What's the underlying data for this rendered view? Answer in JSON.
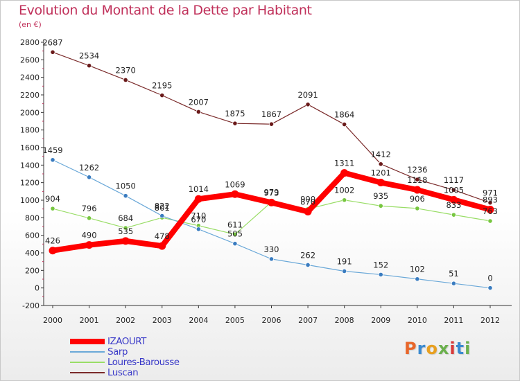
{
  "title": "Evolution du Montant de la Dette par Habitant",
  "subtitle": "(en €)",
  "logo_text": "Proxiti",
  "logo_colors": [
    "#e8662a",
    "#3a8ad0",
    "#e8a020",
    "#6ab04c",
    "#d83a3a",
    "#3a8ad0",
    "#6ab04c"
  ],
  "chart_data": {
    "type": "line",
    "x": [
      "2000",
      "2001",
      "2002",
      "2003",
      "2004",
      "2005",
      "2006",
      "2007",
      "2008",
      "2009",
      "2010",
      "2011",
      "2012"
    ],
    "ylim": [
      -200,
      2800
    ],
    "yticks": [
      "-200",
      "0",
      "200",
      "400",
      "600",
      "800",
      "1000",
      "1200",
      "1400",
      "1600",
      "1800",
      "2000",
      "2200",
      "2400",
      "2600",
      "2800"
    ],
    "grid": false,
    "legend_position": "bottom-left",
    "series": [
      {
        "name": "IZAOURT",
        "color": "#ff0000",
        "values": [
          426,
          490,
          535,
          478,
          1014,
          1069,
          973,
          870,
          1311,
          1201,
          1118,
          1005,
          893
        ],
        "labels": [
          "426",
          "490",
          "535",
          "478",
          "1014",
          "1069",
          "973",
          "870",
          "1311",
          "1201",
          "1118",
          "1005",
          "893"
        ]
      },
      {
        "name": "Sarp",
        "color": "#6aa8d8",
        "values": [
          1459,
          1262,
          1050,
          822,
          670,
          505,
          330,
          262,
          191,
          152,
          102,
          51,
          0
        ],
        "labels": [
          "1459",
          "1262",
          "1050",
          "822",
          "670",
          "505",
          "330",
          "262",
          "191",
          "152",
          "102",
          "51",
          "0"
        ]
      },
      {
        "name": "Loures-Barousse",
        "color": "#99dd66",
        "values": [
          904,
          796,
          684,
          801,
          710,
          611,
          979,
          900,
          1002,
          935,
          906,
          833,
          763
        ],
        "labels": [
          "904",
          "796",
          "684",
          "801",
          "710",
          "611",
          "979",
          "900",
          "1002",
          "935",
          "906",
          "833",
          "763"
        ]
      },
      {
        "name": "Luscan",
        "color": "#7a2a2a",
        "values": [
          2687,
          2534,
          2370,
          2195,
          2007,
          1875,
          1867,
          2091,
          1864,
          1412,
          1236,
          1117,
          971
        ],
        "labels": [
          "2687",
          "2534",
          "2370",
          "2195",
          "2007",
          "1875",
          "1867",
          "2091",
          "1864",
          "1412",
          "1236",
          "1117",
          "971"
        ]
      }
    ]
  }
}
